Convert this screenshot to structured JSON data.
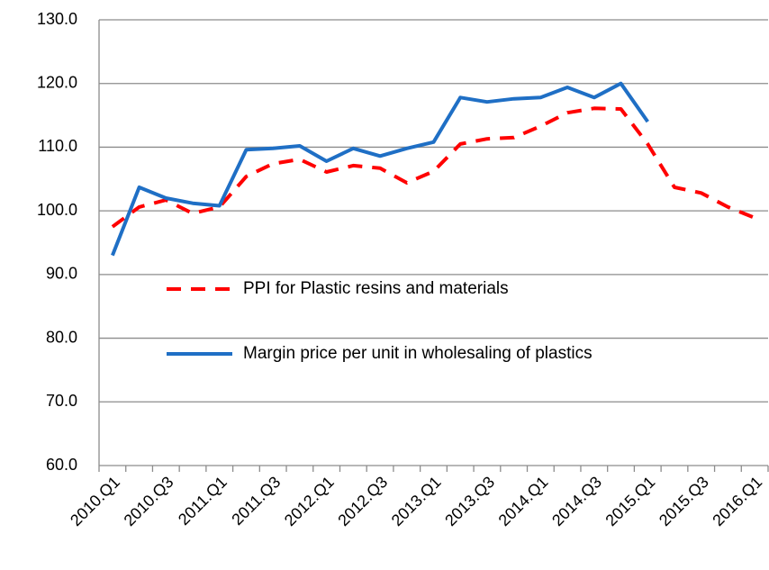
{
  "chart_data": {
    "type": "line",
    "categories": [
      "2010.Q1",
      null,
      "2010.Q3",
      null,
      "2011.Q1",
      null,
      "2011.Q3",
      null,
      "2012.Q1",
      null,
      "2012.Q3",
      null,
      "2013.Q1",
      null,
      "2013.Q3",
      null,
      "2014.Q1",
      null,
      "2014.Q3",
      null,
      "2015.Q1",
      null,
      "2015.Q3",
      null,
      "2016.Q1"
    ],
    "series": [
      {
        "name": "PPI for Plastic resins and materials",
        "color": "#ff0000",
        "dashed": true,
        "values": [
          97.5,
          100.6,
          101.7,
          99.6,
          100.6,
          105.4,
          107.4,
          108.1,
          106.1,
          107.1,
          106.7,
          104.4,
          106.2,
          110.5,
          111.3,
          111.5,
          113.3,
          115.4,
          116.1,
          116.0,
          110.5,
          103.7,
          102.8,
          100.6,
          98.9
        ]
      },
      {
        "name": "Margin price per unit in wholesaling of plastics",
        "color": "#1f6fc5",
        "dashed": false,
        "values": [
          93.0,
          103.7,
          102.0,
          101.2,
          100.8,
          109.6,
          109.8,
          110.2,
          107.8,
          109.8,
          108.6,
          109.8,
          110.8,
          117.8,
          117.1,
          117.6,
          117.8,
          119.4,
          117.8,
          120.0,
          114.0,
          null,
          null,
          null,
          null
        ]
      }
    ],
    "ylim": [
      60,
      130
    ],
    "yticks": [
      {
        "value": 60,
        "label": "60.0"
      },
      {
        "value": 70,
        "label": "70.0"
      },
      {
        "value": 80,
        "label": "80.0"
      },
      {
        "value": 90,
        "label": "90.0"
      },
      {
        "value": 100,
        "label": "100.0"
      },
      {
        "value": 110,
        "label": "110.0"
      },
      {
        "value": 120,
        "label": "120.0"
      },
      {
        "value": 130,
        "label": "130.0"
      }
    ],
    "grid": true
  }
}
